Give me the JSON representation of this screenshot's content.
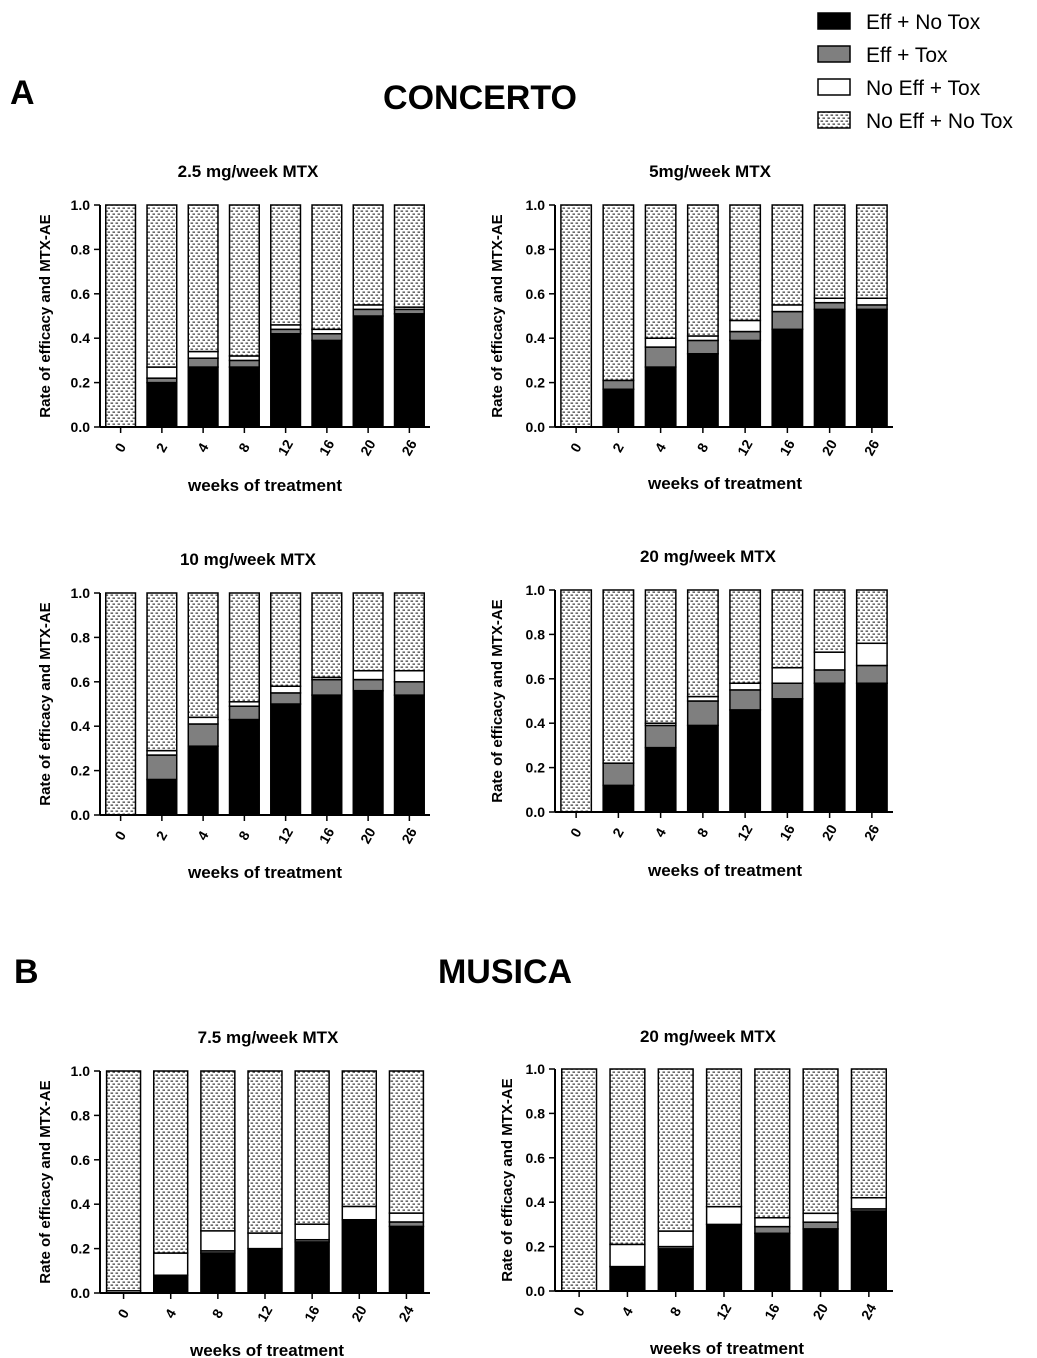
{
  "legend": {
    "position": "top-right",
    "items": [
      {
        "label": "Eff + No Tox",
        "fill": "#000000"
      },
      {
        "label": "Eff + Tox",
        "fill": "#7f7f7f"
      },
      {
        "label": "No Eff + Tox",
        "fill": "#ffffff"
      },
      {
        "label": "No Eff + No Tox",
        "fill": "pattern"
      }
    ]
  },
  "sections": [
    {
      "letter": "A",
      "title": "CONCERTO"
    },
    {
      "letter": "B",
      "title": "MUSICA"
    }
  ],
  "chart_data": [
    {
      "type": "bar",
      "stacked": true,
      "title": "2.5 mg/week MTX",
      "xlabel": "weeks of treatment",
      "ylabel": "Rate of efficacy and MTX-AE",
      "ylim": [
        0,
        1.0
      ],
      "yticks": [
        "0.0",
        "0.2",
        "0.4",
        "0.6",
        "0.8",
        "1.0"
      ],
      "categories": [
        "0",
        "2",
        "4",
        "8",
        "12",
        "16",
        "20",
        "26"
      ],
      "series": [
        {
          "name": "Eff + No Tox",
          "values": [
            0.0,
            0.2,
            0.27,
            0.27,
            0.42,
            0.39,
            0.5,
            0.51
          ]
        },
        {
          "name": "Eff + Tox",
          "values": [
            0.0,
            0.02,
            0.04,
            0.03,
            0.02,
            0.03,
            0.03,
            0.02
          ]
        },
        {
          "name": "No Eff + Tox",
          "values": [
            0.0,
            0.05,
            0.03,
            0.02,
            0.02,
            0.02,
            0.02,
            0.01
          ]
        },
        {
          "name": "No Eff + No Tox",
          "values": [
            1.0,
            0.73,
            0.66,
            0.68,
            0.54,
            0.56,
            0.45,
            0.46
          ]
        }
      ]
    },
    {
      "type": "bar",
      "stacked": true,
      "title": "5mg/week MTX",
      "xlabel": "weeks of treatment",
      "ylabel": "Rate of efficacy and MTX-AE",
      "ylim": [
        0,
        1.0
      ],
      "yticks": [
        "0.0",
        "0.2",
        "0.4",
        "0.6",
        "0.8",
        "1.0"
      ],
      "categories": [
        "0",
        "2",
        "4",
        "8",
        "12",
        "16",
        "20",
        "26"
      ],
      "series": [
        {
          "name": "Eff + No Tox",
          "values": [
            0.0,
            0.17,
            0.27,
            0.33,
            0.39,
            0.44,
            0.53,
            0.53
          ]
        },
        {
          "name": "Eff + Tox",
          "values": [
            0.0,
            0.04,
            0.09,
            0.06,
            0.04,
            0.08,
            0.03,
            0.02
          ]
        },
        {
          "name": "No Eff + Tox",
          "values": [
            0.0,
            0.0,
            0.04,
            0.02,
            0.05,
            0.03,
            0.02,
            0.03
          ]
        },
        {
          "name": "No Eff + No Tox",
          "values": [
            1.0,
            0.79,
            0.6,
            0.59,
            0.52,
            0.45,
            0.42,
            0.42
          ]
        }
      ]
    },
    {
      "type": "bar",
      "stacked": true,
      "title": "10 mg/week MTX",
      "xlabel": "weeks of treatment",
      "ylabel": "Rate of efficacy and MTX-AE",
      "ylim": [
        0,
        1.0
      ],
      "yticks": [
        "0.0",
        "0.2",
        "0.4",
        "0.6",
        "0.8",
        "1.0"
      ],
      "categories": [
        "0",
        "2",
        "4",
        "8",
        "12",
        "16",
        "20",
        "26"
      ],
      "series": [
        {
          "name": "Eff + No Tox",
          "values": [
            0.0,
            0.16,
            0.31,
            0.43,
            0.5,
            0.54,
            0.56,
            0.54
          ]
        },
        {
          "name": "Eff + Tox",
          "values": [
            0.0,
            0.11,
            0.1,
            0.06,
            0.05,
            0.07,
            0.05,
            0.06
          ]
        },
        {
          "name": "No Eff + Tox",
          "values": [
            0.0,
            0.02,
            0.03,
            0.02,
            0.03,
            0.01,
            0.04,
            0.05
          ]
        },
        {
          "name": "No Eff + No Tox",
          "values": [
            1.0,
            0.71,
            0.56,
            0.49,
            0.42,
            0.38,
            0.35,
            0.35
          ]
        }
      ]
    },
    {
      "type": "bar",
      "stacked": true,
      "title": "20 mg/week MTX",
      "xlabel": "weeks of treatment",
      "ylabel": "Rate of efficacy and MTX-AE",
      "ylim": [
        0,
        1.0
      ],
      "yticks": [
        "0.0",
        "0.2",
        "0.4",
        "0.6",
        "0.8",
        "1.0"
      ],
      "categories": [
        "0",
        "2",
        "4",
        "8",
        "12",
        "16",
        "20",
        "26"
      ],
      "series": [
        {
          "name": "Eff + No Tox",
          "values": [
            0.0,
            0.12,
            0.29,
            0.39,
            0.46,
            0.51,
            0.58,
            0.58
          ]
        },
        {
          "name": "Eff + Tox",
          "values": [
            0.0,
            0.1,
            0.1,
            0.11,
            0.09,
            0.07,
            0.06,
            0.08
          ]
        },
        {
          "name": "No Eff + Tox",
          "values": [
            0.0,
            0.0,
            0.01,
            0.02,
            0.03,
            0.07,
            0.08,
            0.1
          ]
        },
        {
          "name": "No Eff + No Tox",
          "values": [
            1.0,
            0.78,
            0.6,
            0.48,
            0.42,
            0.35,
            0.28,
            0.24
          ]
        }
      ]
    },
    {
      "type": "bar",
      "stacked": true,
      "title": "7.5 mg/week MTX",
      "xlabel": "weeks of treatment",
      "ylabel": "Rate of efficacy and MTX-AE",
      "ylim": [
        0,
        1.0
      ],
      "yticks": [
        "0.0",
        "0.2",
        "0.4",
        "0.6",
        "0.8",
        "1.0"
      ],
      "categories": [
        "0",
        "4",
        "8",
        "12",
        "16",
        "20",
        "24"
      ],
      "series": [
        {
          "name": "Eff + No Tox",
          "values": [
            0.0,
            0.08,
            0.18,
            0.2,
            0.23,
            0.33,
            0.3
          ]
        },
        {
          "name": "Eff + Tox",
          "values": [
            0.0,
            0.0,
            0.01,
            0.0,
            0.01,
            0.0,
            0.02
          ]
        },
        {
          "name": "No Eff + Tox",
          "values": [
            0.01,
            0.1,
            0.09,
            0.07,
            0.07,
            0.06,
            0.04
          ]
        },
        {
          "name": "No Eff + No Tox",
          "values": [
            0.99,
            0.82,
            0.72,
            0.73,
            0.69,
            0.61,
            0.64
          ]
        }
      ]
    },
    {
      "type": "bar",
      "stacked": true,
      "title": "20 mg/week MTX",
      "xlabel": "weeks of treatment",
      "ylabel": "Rate of efficacy and MTX-AE",
      "ylim": [
        0,
        1.0
      ],
      "yticks": [
        "0.0",
        "0.2",
        "0.4",
        "0.6",
        "0.8",
        "1.0"
      ],
      "categories": [
        "0",
        "4",
        "8",
        "12",
        "16",
        "20",
        "24"
      ],
      "series": [
        {
          "name": "Eff + No Tox",
          "values": [
            0.0,
            0.11,
            0.19,
            0.3,
            0.26,
            0.28,
            0.36
          ]
        },
        {
          "name": "Eff + Tox",
          "values": [
            0.0,
            0.0,
            0.01,
            0.0,
            0.03,
            0.03,
            0.01
          ]
        },
        {
          "name": "No Eff + Tox",
          "values": [
            0.0,
            0.1,
            0.07,
            0.08,
            0.04,
            0.04,
            0.05
          ]
        },
        {
          "name": "No Eff + No Tox",
          "values": [
            1.0,
            0.79,
            0.73,
            0.62,
            0.67,
            0.65,
            0.58
          ]
        }
      ]
    }
  ]
}
